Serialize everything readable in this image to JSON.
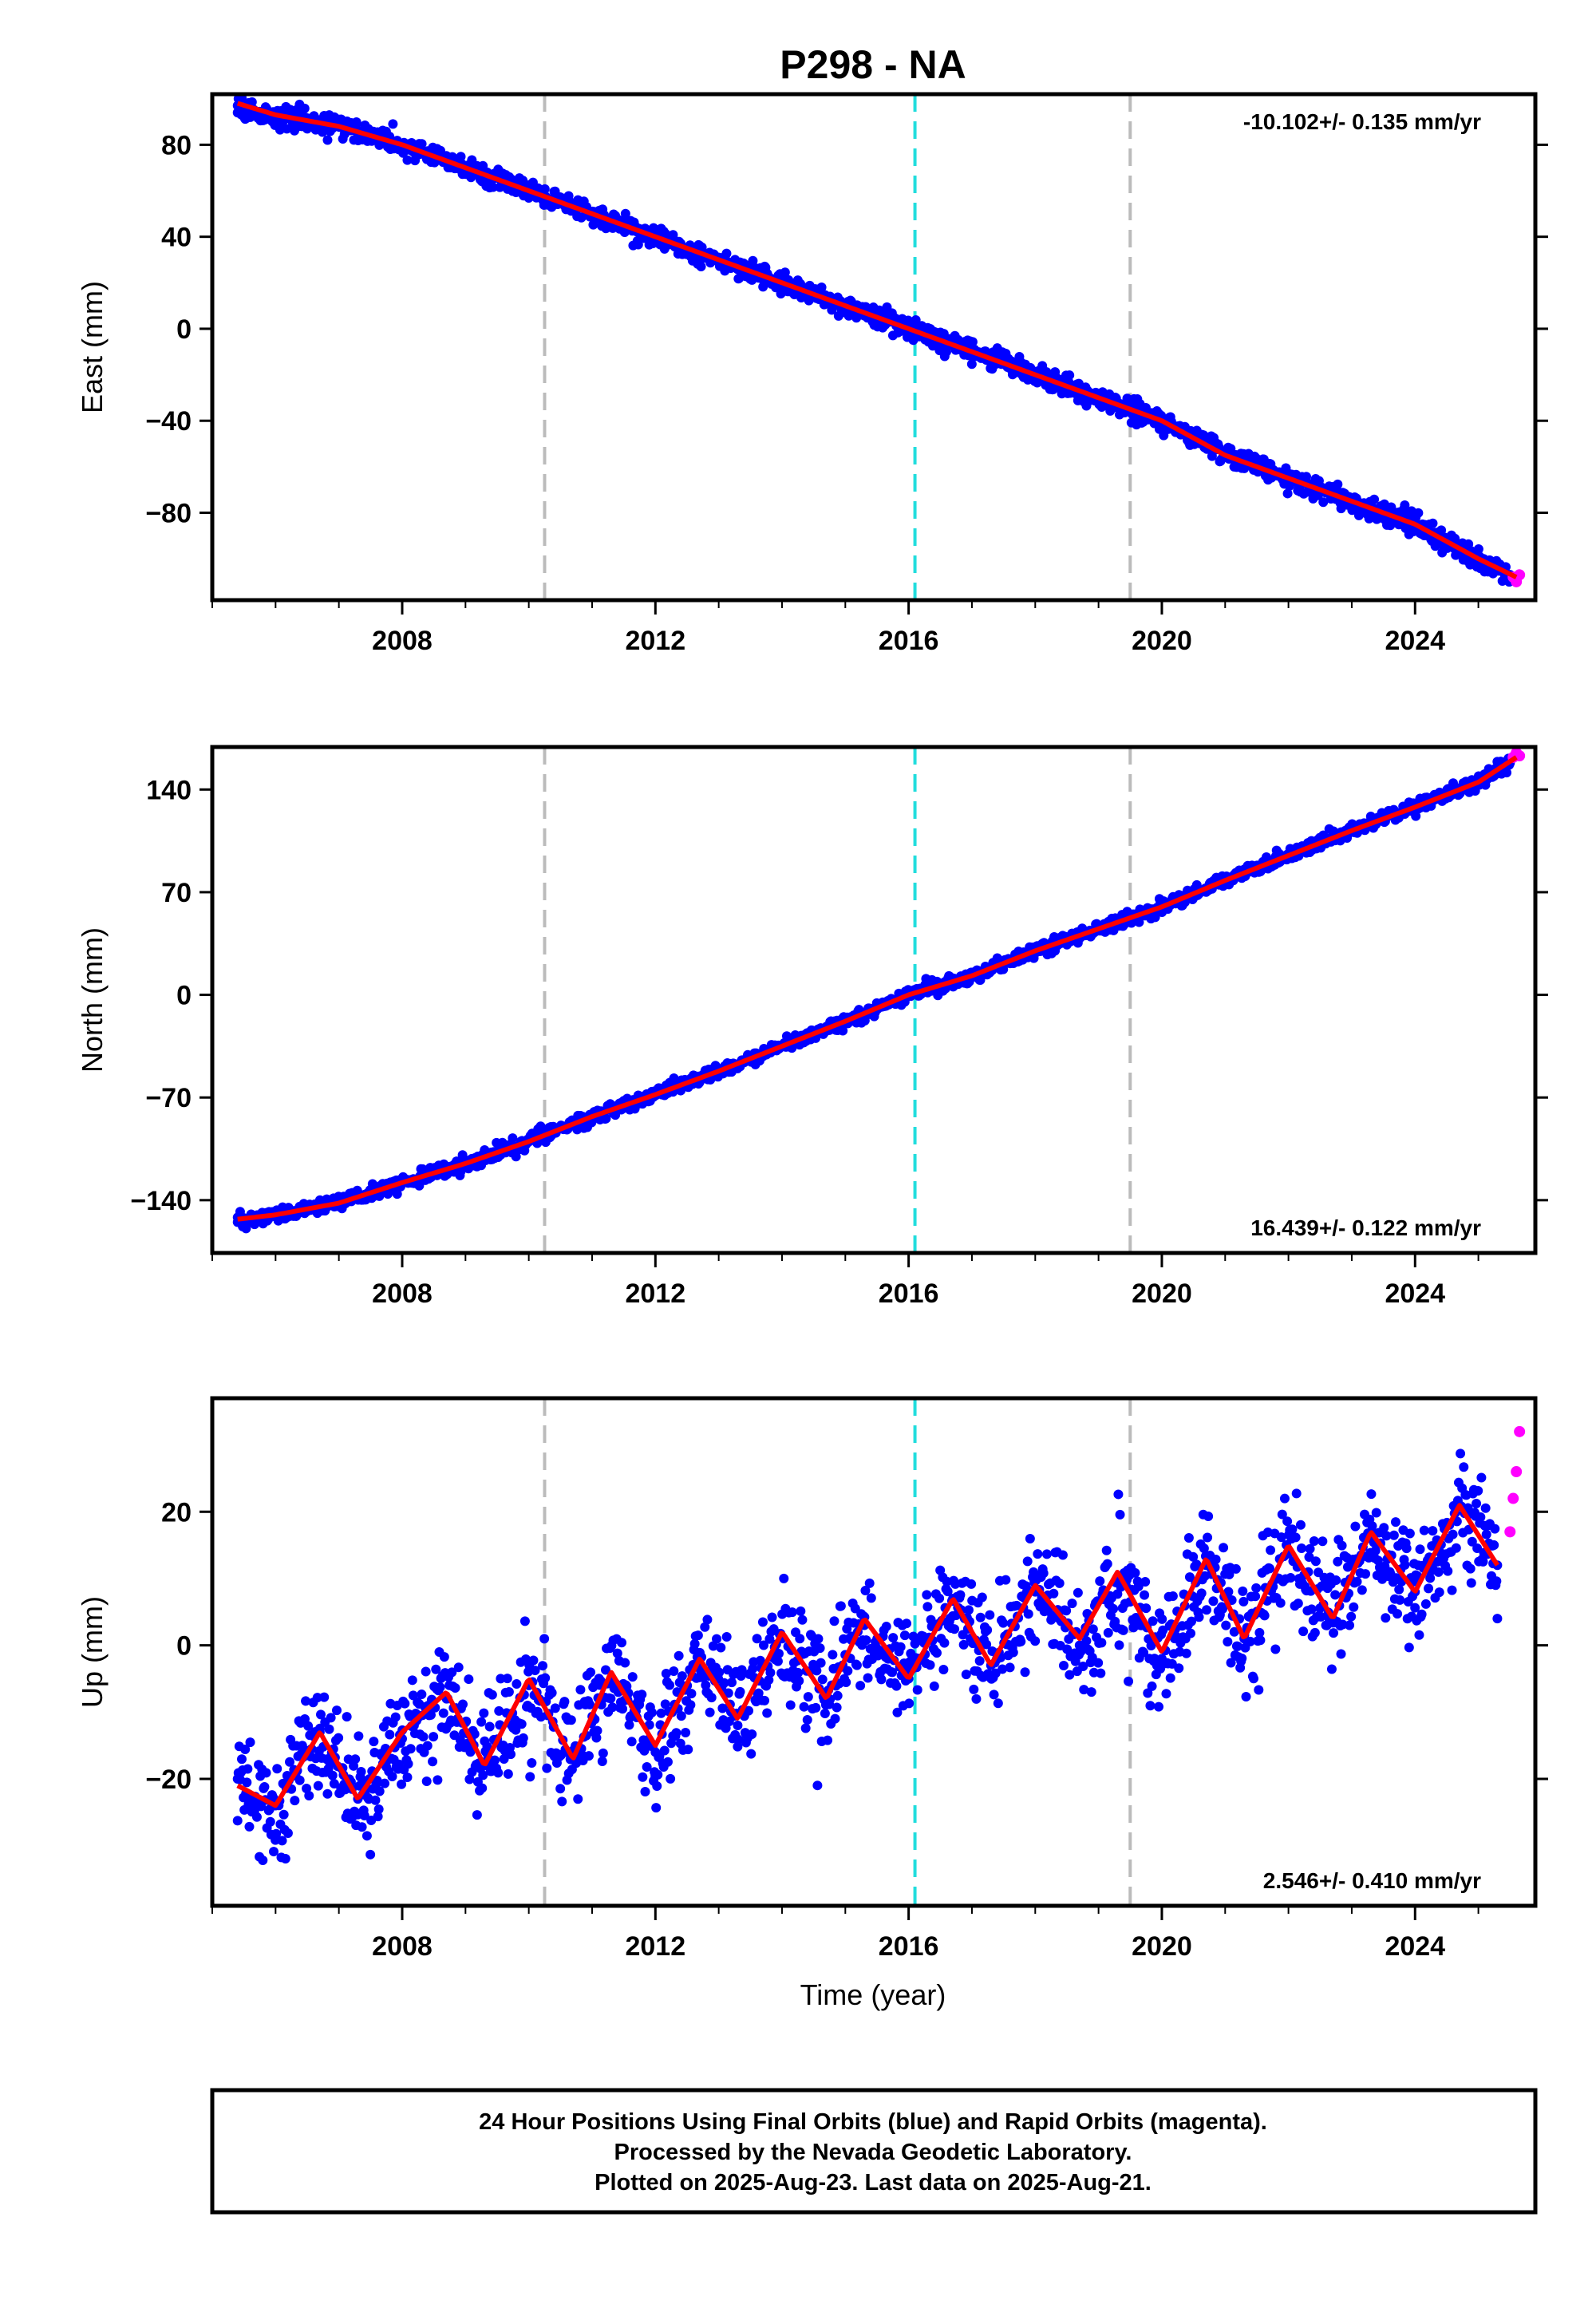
{
  "chart_data": {
    "title": "P298 - NA",
    "type": "scatter",
    "xlim": [
      2005.0,
      2025.9
    ],
    "x_tick_labels": [
      "2008",
      "2012",
      "2016",
      "2020",
      "2024"
    ],
    "xlabel": "Time (year)",
    "grid": false,
    "vertical_markers": [
      {
        "x": 2010.25,
        "color": "#bbbbbb",
        "style": "dashed"
      },
      {
        "x": 2016.1,
        "color": "#22dddd",
        "style": "dashed"
      },
      {
        "x": 2019.5,
        "color": "#bbbbbb",
        "style": "dashed"
      }
    ],
    "colors": {
      "final": "#0000ff",
      "rapid": "#ff00ff",
      "model": "#ff0000"
    },
    "panels": [
      {
        "ylabel": "East (mm)",
        "ylim": [
          -118,
          102
        ],
        "y_tick_labels": [
          "80",
          "40",
          "0",
          "-40",
          "-80"
        ],
        "rate_label": "-10.102+/- 0.135 mm/yr",
        "rate_position": "top-right",
        "series": [
          {
            "role": "final",
            "x": [
              2005.4,
              2006.0,
              2007.0,
              2008.0,
              2009.0,
              2010.0,
              2011.0,
              2012.0,
              2013.0,
              2014.0,
              2015.0,
              2016.0,
              2017.0,
              2018.0,
              2019.0,
              2020.0,
              2021.0,
              2022.0,
              2023.0,
              2024.0,
              2025.0,
              2025.5
            ],
            "y": [
              97,
              92,
              89,
              80,
              70,
              60,
              50,
              40,
              30,
              20,
              10,
              0,
              -10,
              -20,
              -30,
              -40,
              -55,
              -65,
              -75,
              -85,
              -100,
              -108
            ]
          },
          {
            "role": "rapid",
            "x": [
              2025.55,
              2025.6,
              2025.65
            ],
            "y": [
              -108,
              -110,
              -107
            ]
          },
          {
            "role": "model",
            "x": [
              2005.4,
              2006.0,
              2007.0,
              2008.0,
              2009.0,
              2010.0,
              2011.0,
              2012.0,
              2013.0,
              2014.0,
              2015.0,
              2016.0,
              2017.0,
              2018.0,
              2019.0,
              2020.0,
              2021.0,
              2022.0,
              2023.0,
              2024.0,
              2025.0,
              2025.6
            ],
            "y": [
              98,
              93,
              88,
              80,
              70,
              60,
              50,
              40,
              30,
              20,
              10,
              0,
              -10,
              -20,
              -30,
              -40,
              -55,
              -65,
              -75,
              -85,
              -100,
              -108
            ]
          }
        ]
      },
      {
        "ylabel": "North (mm)",
        "ylim": [
          -176,
          169
        ],
        "y_tick_labels": [
          "140",
          "70",
          "0",
          "-70",
          "-140"
        ],
        "rate_label": "16.439+/- 0.122 mm/yr",
        "rate_position": "bottom-right",
        "series": [
          {
            "role": "final",
            "x": [
              2005.4,
              2006.0,
              2007.0,
              2008.0,
              2009.0,
              2010.0,
              2011.0,
              2012.0,
              2013.0,
              2014.0,
              2015.0,
              2016.0,
              2017.0,
              2018.0,
              2019.0,
              2020.0,
              2021.0,
              2022.0,
              2023.0,
              2024.0,
              2025.0,
              2025.5
            ],
            "y": [
              -155,
              -150,
              -142,
              -128,
              -115,
              -100,
              -83,
              -68,
              -52,
              -35,
              -18,
              0,
              13,
              30,
              45,
              60,
              78,
              95,
              112,
              128,
              145,
              158
            ]
          },
          {
            "role": "rapid",
            "x": [
              2025.55,
              2025.6,
              2025.65
            ],
            "y": [
              162,
              165,
              163
            ]
          },
          {
            "role": "model",
            "x": [
              2005.4,
              2006.0,
              2007.0,
              2008.0,
              2009.0,
              2010.0,
              2011.0,
              2012.0,
              2013.0,
              2014.0,
              2015.0,
              2016.0,
              2017.0,
              2018.0,
              2019.0,
              2020.0,
              2021.0,
              2022.0,
              2023.0,
              2024.0,
              2025.0,
              2025.6
            ],
            "y": [
              -153,
              -150,
              -142,
              -128,
              -115,
              -100,
              -83,
              -68,
              -52,
              -35,
              -18,
              0,
              13,
              30,
              45,
              60,
              78,
              95,
              112,
              128,
              145,
              162
            ]
          }
        ]
      },
      {
        "ylabel": "Up (mm)",
        "ylim": [
          -39,
          37
        ],
        "y_tick_labels": [
          "20",
          "0",
          "-20"
        ],
        "rate_label": "2.546+/- 0.410 mm/yr",
        "rate_position": "bottom-right",
        "series": [
          {
            "role": "final",
            "x": [
              2005.4,
              2006.0,
              2006.7,
              2007.3,
              2008.0,
              2008.7,
              2009.3,
              2010.0,
              2010.7,
              2011.3,
              2012.0,
              2012.7,
              2013.3,
              2014.0,
              2014.7,
              2015.3,
              2016.0,
              2016.7,
              2017.3,
              2018.0,
              2018.7,
              2019.3,
              2020.0,
              2020.7,
              2021.3,
              2022.0,
              2022.7,
              2023.3,
              2024.0,
              2024.7,
              2025.3
            ],
            "y": [
              -20,
              -24,
              -13,
              -23,
              -14,
              -8,
              -18,
              -6,
              -17,
              -5,
              -16,
              -3,
              -12,
              1,
              -8,
              3,
              -5,
              7,
              -3,
              8,
              0,
              10,
              -2,
              12,
              1,
              14,
              4,
              16,
              8,
              21,
              12
            ]
          },
          {
            "role": "rapid",
            "x": [
              2025.5,
              2025.55,
              2025.6,
              2025.65
            ],
            "y": [
              17,
              22,
              26,
              32
            ]
          },
          {
            "role": "model",
            "x": [
              2005.4,
              2006.0,
              2006.7,
              2007.3,
              2008.0,
              2008.7,
              2009.3,
              2010.0,
              2010.7,
              2011.3,
              2012.0,
              2012.7,
              2013.3,
              2014.0,
              2014.7,
              2015.3,
              2016.0,
              2016.7,
              2017.3,
              2018.0,
              2018.7,
              2019.3,
              2020.0,
              2020.7,
              2021.3,
              2022.0,
              2022.7,
              2023.3,
              2024.0,
              2024.7,
              2025.3
            ],
            "y": [
              -21,
              -24,
              -13,
              -23,
              -13,
              -7,
              -18,
              -5,
              -17,
              -4,
              -15,
              -2,
              -11,
              2,
              -8,
              4,
              -5,
              7,
              -3,
              9,
              1,
              11,
              -1,
              13,
              1,
              15,
              4,
              17,
              8,
              21,
              12
            ]
          }
        ]
      }
    ]
  },
  "footer": {
    "line1": "24 Hour Positions Using Final Orbits (blue) and Rapid Orbits (magenta).",
    "line2": "Processed by the Nevada Geodetic Laboratory.",
    "line3": "Plotted on 2025-Aug-23. Last data on 2025-Aug-21."
  }
}
